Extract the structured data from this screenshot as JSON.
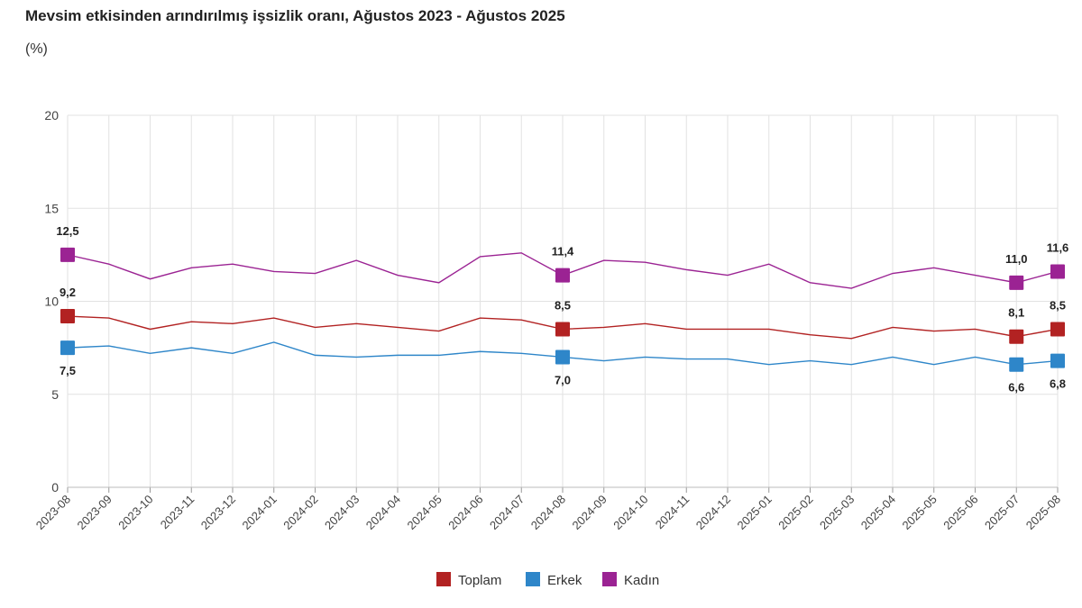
{
  "title": "Mevsim etkisinden arındırılmış işsizlik oranı, Ağustos 2023 - Ağustos 2025",
  "unit": "(%)",
  "chart_data": {
    "type": "line",
    "ylim": [
      0,
      20
    ],
    "yticks": [
      0,
      5,
      10,
      15,
      20
    ],
    "grid": true,
    "legend_position": "bottom",
    "x": [
      "2023-08",
      "2023-09",
      "2023-10",
      "2023-11",
      "2023-12",
      "2024-01",
      "2024-02",
      "2024-03",
      "2024-04",
      "2024-05",
      "2024-06",
      "2024-07",
      "2024-08",
      "2024-09",
      "2024-10",
      "2024-11",
      "2024-12",
      "2025-01",
      "2025-02",
      "2025-03",
      "2025-04",
      "2025-05",
      "2025-06",
      "2025-07",
      "2025-08"
    ],
    "series": [
      {
        "name": "Toplam",
        "color": "#b22222",
        "values": [
          9.2,
          9.1,
          8.5,
          8.9,
          8.8,
          9.1,
          8.6,
          8.8,
          8.6,
          8.4,
          9.1,
          9.0,
          8.5,
          8.6,
          8.8,
          8.5,
          8.5,
          8.5,
          8.2,
          8.0,
          8.6,
          8.4,
          8.5,
          8.1,
          8.5
        ],
        "labels": {
          "0": "9,2",
          "12": "8,5",
          "23": "8,1",
          "24": "8,5"
        }
      },
      {
        "name": "Erkek",
        "color": "#2e86c9",
        "values": [
          7.5,
          7.6,
          7.2,
          7.5,
          7.2,
          7.8,
          7.1,
          7.0,
          7.1,
          7.1,
          7.3,
          7.2,
          7.0,
          6.8,
          7.0,
          6.9,
          6.9,
          6.6,
          6.8,
          6.6,
          7.0,
          6.6,
          7.0,
          6.6,
          6.8
        ],
        "labels": {
          "0": "7,5",
          "12": "7,0",
          "23": "6,6",
          "24": "6,8"
        }
      },
      {
        "name": "Kadın",
        "color": "#9b2393",
        "values": [
          12.5,
          12.0,
          11.2,
          11.8,
          12.0,
          11.6,
          11.5,
          12.2,
          11.4,
          11.0,
          12.4,
          12.6,
          11.4,
          12.2,
          12.1,
          11.7,
          11.4,
          12.0,
          11.0,
          10.7,
          11.5,
          11.8,
          11.4,
          11.0,
          11.6
        ],
        "labels": {
          "0": "12,5",
          "12": "11,4",
          "23": "11,0",
          "24": "11,6"
        }
      }
    ]
  }
}
